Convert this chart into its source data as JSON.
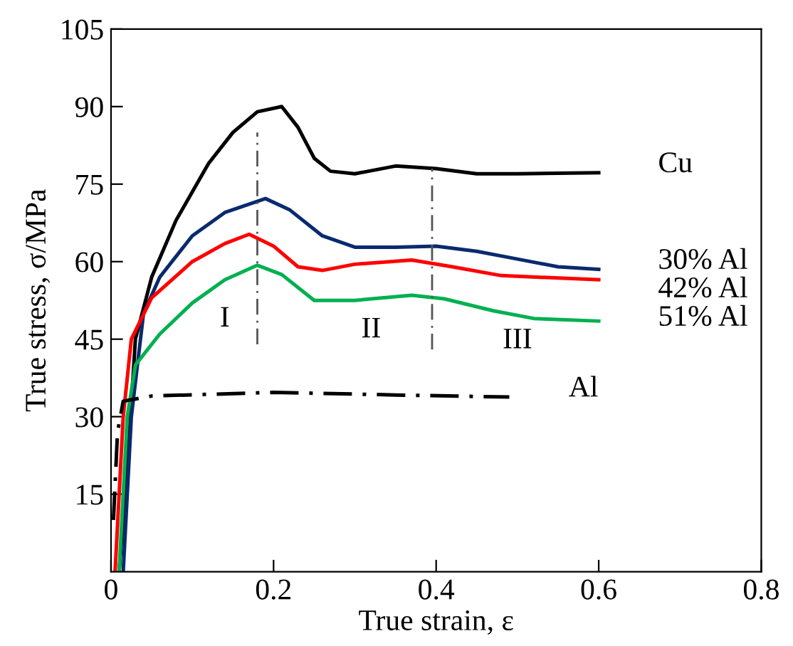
{
  "chart_data": {
    "type": "line",
    "xlabel": "True strain, ε",
    "ylabel": "True stress, σ/MPa",
    "xlim": [
      0,
      0.8
    ],
    "xticks": [
      0,
      0.2,
      0.4,
      0.6,
      0.8
    ],
    "ylim": [
      0,
      105
    ],
    "yticks": [
      15,
      30,
      45,
      60,
      75,
      90,
      105
    ],
    "grid": false,
    "legend": false,
    "marker": "none",
    "series": [
      {
        "name": "Cu",
        "color": "#000000",
        "x": [
          0.01,
          0.02,
          0.03,
          0.05,
          0.08,
          0.12,
          0.15,
          0.18,
          0.21,
          0.23,
          0.25,
          0.27,
          0.3,
          0.35,
          0.4,
          0.45,
          0.5,
          0.6
        ],
        "values": [
          0,
          20,
          45,
          57,
          68,
          79,
          85,
          89,
          90,
          86,
          80,
          77.5,
          77,
          78.5,
          78,
          77,
          77,
          77.2
        ]
      },
      {
        "name": "30% Al",
        "color": "#0a2a6e",
        "x": [
          0.015,
          0.025,
          0.04,
          0.06,
          0.1,
          0.14,
          0.19,
          0.22,
          0.26,
          0.3,
          0.35,
          0.4,
          0.45,
          0.5,
          0.55,
          0.6
        ],
        "values": [
          0,
          30,
          50,
          57,
          65,
          69.5,
          72.2,
          70,
          65,
          62.8,
          62.8,
          63,
          62,
          60.5,
          59,
          58.5
        ]
      },
      {
        "name": "42% Al",
        "color": "#ff0000",
        "x": [
          0.005,
          0.015,
          0.025,
          0.05,
          0.1,
          0.14,
          0.17,
          0.2,
          0.23,
          0.26,
          0.3,
          0.37,
          0.42,
          0.48,
          0.6
        ],
        "values": [
          0,
          30,
          45,
          53,
          60,
          63.5,
          65.3,
          63,
          59,
          58.3,
          59.5,
          60.3,
          59,
          57.3,
          56.5
        ]
      },
      {
        "name": "51% Al",
        "color": "#00b050",
        "x": [
          0.01,
          0.02,
          0.03,
          0.06,
          0.1,
          0.14,
          0.18,
          0.21,
          0.25,
          0.3,
          0.37,
          0.41,
          0.47,
          0.52,
          0.6
        ],
        "values": [
          0,
          30,
          40,
          46,
          52,
          56.5,
          59.3,
          57.5,
          52.5,
          52.5,
          53.5,
          52.8,
          50.5,
          49,
          48.5
        ]
      },
      {
        "name": "Al",
        "color": "#000000",
        "line_style": "dashed",
        "x": [
          0.003,
          0.008,
          0.015,
          0.05,
          0.2,
          0.35,
          0.49
        ],
        "values": [
          10,
          27,
          33,
          34,
          34.7,
          34.2,
          33.8
        ]
      },
      {
        "color": "#555555",
        "line_style": "dashed",
        "x": [
          0.18,
          0.18
        ],
        "values": [
          44,
          85
        ]
      },
      {
        "color": "#555555",
        "line_style": "dashed",
        "x": [
          0.395,
          0.395
        ],
        "values": [
          43,
          78
        ]
      }
    ],
    "annotations": [
      "I",
      "II",
      "III"
    ]
  }
}
